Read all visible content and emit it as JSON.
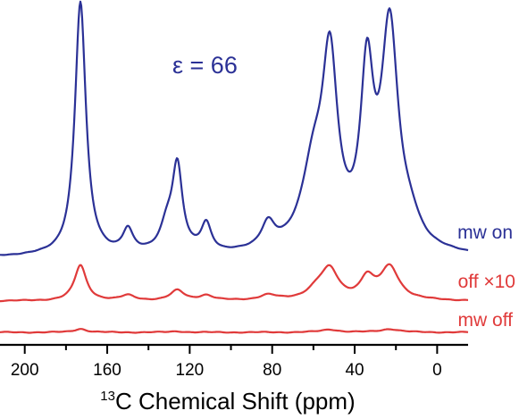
{
  "chart_data": {
    "type": "line",
    "annotation": "ε = 66",
    "xlabel_sup": "13",
    "xlabel_main": "C Chemical Shift (ppm)",
    "x_range": [
      212,
      -15
    ],
    "x_reversed": true,
    "x_ticks": [
      200,
      160,
      120,
      80,
      40,
      0
    ],
    "colors": {
      "on": "#2b3196",
      "off": "#e03a3a",
      "axis": "#000000"
    },
    "series": [
      {
        "name": "mw on",
        "key": "on",
        "baseline": 0,
        "peaks": [
          {
            "ppm": 173,
            "height": 100,
            "width": 3.2
          },
          {
            "ppm": 150,
            "height": 9,
            "width": 3
          },
          {
            "ppm": 126,
            "height": 33,
            "width": 3
          },
          {
            "ppm": 131,
            "height": 10,
            "width": 4
          },
          {
            "ppm": 112,
            "height": 11,
            "width": 3
          },
          {
            "ppm": 82,
            "height": 10,
            "width": 4
          },
          {
            "ppm": 60,
            "height": 30,
            "width": 7
          },
          {
            "ppm": 52,
            "height": 70,
            "width": 4.5
          },
          {
            "ppm": 34,
            "height": 65,
            "width": 3.8
          },
          {
            "ppm": 23,
            "height": 86,
            "width": 5
          },
          {
            "ppm": 13,
            "height": 8,
            "width": 6
          }
        ]
      },
      {
        "name": "off ×10",
        "key": "off",
        "baseline": 0,
        "peaks": [
          {
            "ppm": 173,
            "height": 14,
            "width": 3.5
          },
          {
            "ppm": 150,
            "height": 2,
            "width": 4
          },
          {
            "ppm": 126,
            "height": 4,
            "width": 4
          },
          {
            "ppm": 112,
            "height": 2,
            "width": 4
          },
          {
            "ppm": 82,
            "height": 2,
            "width": 5
          },
          {
            "ppm": 58,
            "height": 4,
            "width": 6
          },
          {
            "ppm": 52,
            "height": 11,
            "width": 5
          },
          {
            "ppm": 34,
            "height": 8,
            "width": 4
          },
          {
            "ppm": 23,
            "height": 13,
            "width": 5.5
          }
        ]
      },
      {
        "name": "mw off",
        "key": "off",
        "baseline": 0,
        "peaks": [
          {
            "ppm": 173,
            "height": 1.4,
            "width": 3.5
          },
          {
            "ppm": 126,
            "height": 0.4,
            "width": 4
          },
          {
            "ppm": 52,
            "height": 1.1,
            "width": 5
          },
          {
            "ppm": 23,
            "height": 1.3,
            "width": 5.5
          }
        ]
      }
    ]
  }
}
